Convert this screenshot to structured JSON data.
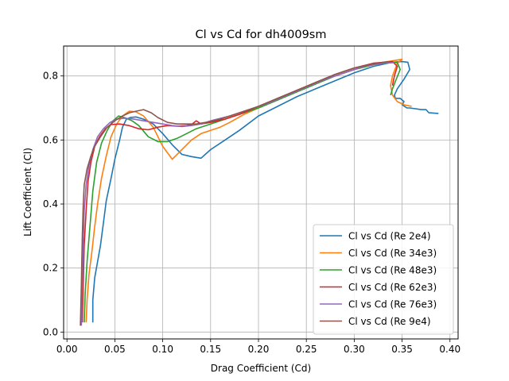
{
  "chart_data": {
    "type": "line",
    "title": "Cl vs Cd for dh4009sm",
    "xlabel": "Drag Coefficient (Cd)",
    "ylabel": "Lift Coefficient (Cl)",
    "xlim": [
      -0.0035,
      0.4085
    ],
    "ylim": [
      -0.0215,
      0.8935
    ],
    "xticks": [
      0.0,
      0.05,
      0.1,
      0.15,
      0.2,
      0.25,
      0.3,
      0.35,
      0.4
    ],
    "xtick_labels": [
      "0.00",
      "0.05",
      "0.10",
      "0.15",
      "0.20",
      "0.25",
      "0.30",
      "0.35",
      "0.40"
    ],
    "yticks": [
      0.0,
      0.2,
      0.4,
      0.6,
      0.8
    ],
    "ytick_labels": [
      "0.0",
      "0.2",
      "0.4",
      "0.6",
      "0.8"
    ],
    "grid": true,
    "legend_position": "lower-right",
    "series": [
      {
        "name": "Cl vs Cd (Re 2e4)",
        "color": "#1f77b4",
        "points": [
          [
            0.027,
            0.03
          ],
          [
            0.027,
            0.1
          ],
          [
            0.029,
            0.17
          ],
          [
            0.032,
            0.22
          ],
          [
            0.035,
            0.27
          ],
          [
            0.038,
            0.34
          ],
          [
            0.041,
            0.41
          ],
          [
            0.046,
            0.48
          ],
          [
            0.05,
            0.54
          ],
          [
            0.055,
            0.6
          ],
          [
            0.058,
            0.64
          ],
          [
            0.062,
            0.665
          ],
          [
            0.066,
            0.67
          ],
          [
            0.072,
            0.672
          ],
          [
            0.08,
            0.665
          ],
          [
            0.09,
            0.65
          ],
          [
            0.1,
            0.62
          ],
          [
            0.11,
            0.585
          ],
          [
            0.12,
            0.555
          ],
          [
            0.13,
            0.548
          ],
          [
            0.14,
            0.543
          ],
          [
            0.15,
            0.57
          ],
          [
            0.165,
            0.6
          ],
          [
            0.18,
            0.63
          ],
          [
            0.2,
            0.675
          ],
          [
            0.22,
            0.705
          ],
          [
            0.24,
            0.735
          ],
          [
            0.26,
            0.76
          ],
          [
            0.28,
            0.785
          ],
          [
            0.3,
            0.81
          ],
          [
            0.32,
            0.83
          ],
          [
            0.34,
            0.843
          ],
          [
            0.35,
            0.845
          ],
          [
            0.356,
            0.843
          ],
          [
            0.358,
            0.82
          ],
          [
            0.352,
            0.79
          ],
          [
            0.345,
            0.76
          ],
          [
            0.342,
            0.74
          ],
          [
            0.343,
            0.73
          ],
          [
            0.348,
            0.73
          ],
          [
            0.352,
            0.72
          ],
          [
            0.35,
            0.71
          ],
          [
            0.355,
            0.7
          ],
          [
            0.358,
            0.7
          ],
          [
            0.37,
            0.695
          ],
          [
            0.375,
            0.695
          ],
          [
            0.378,
            0.685
          ],
          [
            0.388,
            0.683
          ]
        ]
      },
      {
        "name": "Cl vs Cd (Re 34e3)",
        "color": "#ff7f0e",
        "points": [
          [
            0.02,
            0.03
          ],
          [
            0.021,
            0.1
          ],
          [
            0.023,
            0.18
          ],
          [
            0.026,
            0.25
          ],
          [
            0.029,
            0.33
          ],
          [
            0.032,
            0.4
          ],
          [
            0.036,
            0.48
          ],
          [
            0.041,
            0.55
          ],
          [
            0.046,
            0.61
          ],
          [
            0.052,
            0.65
          ],
          [
            0.058,
            0.675
          ],
          [
            0.065,
            0.69
          ],
          [
            0.072,
            0.688
          ],
          [
            0.08,
            0.675
          ],
          [
            0.09,
            0.64
          ],
          [
            0.1,
            0.58
          ],
          [
            0.11,
            0.54
          ],
          [
            0.12,
            0.57
          ],
          [
            0.13,
            0.6
          ],
          [
            0.14,
            0.62
          ],
          [
            0.15,
            0.63
          ],
          [
            0.16,
            0.64
          ],
          [
            0.17,
            0.655
          ],
          [
            0.185,
            0.68
          ],
          [
            0.2,
            0.7
          ],
          [
            0.22,
            0.725
          ],
          [
            0.24,
            0.755
          ],
          [
            0.26,
            0.78
          ],
          [
            0.28,
            0.8
          ],
          [
            0.3,
            0.82
          ],
          [
            0.32,
            0.835
          ],
          [
            0.335,
            0.845
          ],
          [
            0.35,
            0.852
          ],
          [
            0.345,
            0.84
          ],
          [
            0.34,
            0.8
          ],
          [
            0.338,
            0.77
          ],
          [
            0.34,
            0.74
          ],
          [
            0.345,
            0.72
          ],
          [
            0.352,
            0.71
          ],
          [
            0.36,
            0.705
          ]
        ]
      },
      {
        "name": "Cl vs Cd (Re 48e3)",
        "color": "#2ca02c",
        "points": [
          [
            0.018,
            0.03
          ],
          [
            0.019,
            0.12
          ],
          [
            0.021,
            0.22
          ],
          [
            0.024,
            0.33
          ],
          [
            0.027,
            0.44
          ],
          [
            0.031,
            0.53
          ],
          [
            0.036,
            0.59
          ],
          [
            0.042,
            0.63
          ],
          [
            0.048,
            0.66
          ],
          [
            0.054,
            0.675
          ],
          [
            0.06,
            0.67
          ],
          [
            0.068,
            0.66
          ],
          [
            0.075,
            0.645
          ],
          [
            0.085,
            0.61
          ],
          [
            0.095,
            0.595
          ],
          [
            0.105,
            0.595
          ],
          [
            0.115,
            0.605
          ],
          [
            0.125,
            0.62
          ],
          [
            0.135,
            0.635
          ],
          [
            0.145,
            0.645
          ],
          [
            0.155,
            0.655
          ],
          [
            0.17,
            0.67
          ],
          [
            0.185,
            0.685
          ],
          [
            0.2,
            0.7
          ],
          [
            0.22,
            0.725
          ],
          [
            0.24,
            0.75
          ],
          [
            0.26,
            0.775
          ],
          [
            0.28,
            0.8
          ],
          [
            0.3,
            0.82
          ],
          [
            0.32,
            0.835
          ],
          [
            0.335,
            0.842
          ],
          [
            0.345,
            0.842
          ],
          [
            0.348,
            0.82
          ],
          [
            0.344,
            0.79
          ],
          [
            0.34,
            0.76
          ],
          [
            0.338,
            0.74
          ]
        ]
      },
      {
        "name": "Cl vs Cd (Re 62e3)",
        "color": "#d62728",
        "points": [
          [
            0.016,
            0.03
          ],
          [
            0.017,
            0.15
          ],
          [
            0.018,
            0.27
          ],
          [
            0.02,
            0.38
          ],
          [
            0.022,
            0.47
          ],
          [
            0.025,
            0.53
          ],
          [
            0.029,
            0.58
          ],
          [
            0.034,
            0.61
          ],
          [
            0.04,
            0.635
          ],
          [
            0.046,
            0.648
          ],
          [
            0.055,
            0.65
          ],
          [
            0.065,
            0.645
          ],
          [
            0.075,
            0.635
          ],
          [
            0.085,
            0.632
          ],
          [
            0.095,
            0.64
          ],
          [
            0.105,
            0.645
          ],
          [
            0.115,
            0.643
          ],
          [
            0.125,
            0.645
          ],
          [
            0.13,
            0.648
          ],
          [
            0.135,
            0.66
          ],
          [
            0.14,
            0.65
          ],
          [
            0.15,
            0.655
          ],
          [
            0.165,
            0.665
          ],
          [
            0.18,
            0.68
          ],
          [
            0.2,
            0.705
          ],
          [
            0.22,
            0.73
          ],
          [
            0.24,
            0.755
          ],
          [
            0.26,
            0.78
          ],
          [
            0.28,
            0.805
          ],
          [
            0.3,
            0.825
          ],
          [
            0.32,
            0.84
          ],
          [
            0.34,
            0.845
          ],
          [
            0.345,
            0.83
          ],
          [
            0.342,
            0.8
          ],
          [
            0.34,
            0.77
          ]
        ]
      },
      {
        "name": "Cl vs Cd (Re 76e3)",
        "color": "#9467bd",
        "points": [
          [
            0.015,
            0.02
          ],
          [
            0.016,
            0.15
          ],
          [
            0.017,
            0.28
          ],
          [
            0.018,
            0.38
          ],
          [
            0.02,
            0.46
          ],
          [
            0.023,
            0.52
          ],
          [
            0.027,
            0.57
          ],
          [
            0.032,
            0.61
          ],
          [
            0.038,
            0.635
          ],
          [
            0.045,
            0.655
          ],
          [
            0.052,
            0.665
          ],
          [
            0.06,
            0.668
          ],
          [
            0.07,
            0.665
          ],
          [
            0.08,
            0.66
          ],
          [
            0.09,
            0.655
          ],
          [
            0.1,
            0.65
          ],
          [
            0.11,
            0.645
          ],
          [
            0.12,
            0.642
          ],
          [
            0.13,
            0.645
          ],
          [
            0.14,
            0.65
          ],
          [
            0.15,
            0.66
          ],
          [
            0.17,
            0.675
          ],
          [
            0.19,
            0.695
          ],
          [
            0.21,
            0.715
          ],
          [
            0.23,
            0.74
          ],
          [
            0.25,
            0.765
          ],
          [
            0.27,
            0.79
          ],
          [
            0.29,
            0.81
          ],
          [
            0.31,
            0.83
          ],
          [
            0.33,
            0.84
          ],
          [
            0.342,
            0.842
          ]
        ]
      },
      {
        "name": "Cl vs Cd (Re 9e4)",
        "color": "#8c564b",
        "points": [
          [
            0.014,
            0.02
          ],
          [
            0.015,
            0.15
          ],
          [
            0.016,
            0.3
          ],
          [
            0.017,
            0.4
          ],
          [
            0.018,
            0.46
          ],
          [
            0.021,
            0.51
          ],
          [
            0.025,
            0.55
          ],
          [
            0.029,
            0.58
          ],
          [
            0.035,
            0.61
          ],
          [
            0.042,
            0.64
          ],
          [
            0.05,
            0.66
          ],
          [
            0.058,
            0.675
          ],
          [
            0.065,
            0.685
          ],
          [
            0.072,
            0.69
          ],
          [
            0.08,
            0.695
          ],
          [
            0.088,
            0.685
          ],
          [
            0.095,
            0.67
          ],
          [
            0.105,
            0.655
          ],
          [
            0.115,
            0.65
          ],
          [
            0.125,
            0.65
          ],
          [
            0.135,
            0.65
          ],
          [
            0.145,
            0.655
          ],
          [
            0.16,
            0.665
          ],
          [
            0.18,
            0.685
          ],
          [
            0.2,
            0.705
          ],
          [
            0.22,
            0.73
          ],
          [
            0.24,
            0.755
          ],
          [
            0.26,
            0.78
          ],
          [
            0.28,
            0.805
          ],
          [
            0.3,
            0.825
          ],
          [
            0.32,
            0.838
          ],
          [
            0.335,
            0.845
          ]
        ]
      }
    ]
  }
}
